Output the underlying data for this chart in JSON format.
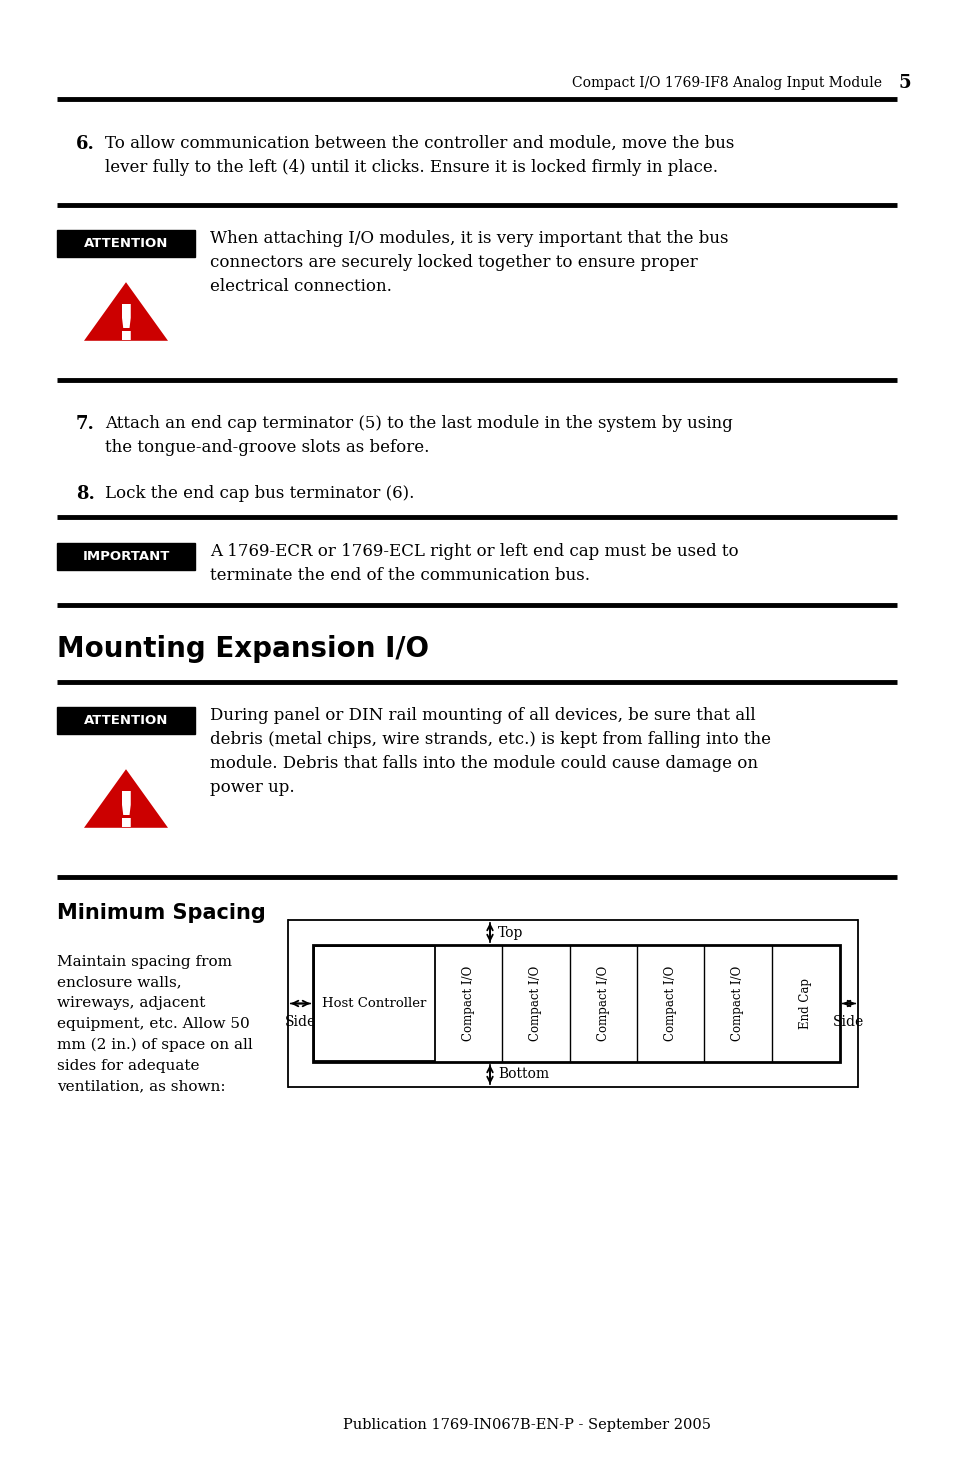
{
  "bg_color": "#ffffff",
  "header_text": "Compact I/O 1769-IF8 Analog Input Module",
  "header_page": "5",
  "section1_heading": "Mounting Expansion I/O",
  "section2_heading": "Minimum Spacing",
  "step6_num": "6.",
  "step6_text": "To allow communication between the controller and module, move the bus\nlever fully to the left (4) until it clicks. Ensure it is locked firmly in place.",
  "step7_num": "7.",
  "step7_text": "Attach an end cap terminator (5) to the last module in the system by using\nthe tongue-and-groove slots as before.",
  "step8_num": "8.",
  "step8_text": "Lock the end cap bus terminator (6).",
  "attention1_text": "When attaching I/O modules, it is very important that the bus\nconnectors are securely locked together to ensure proper\nelectrical connection.",
  "attention2_text": "During panel or DIN rail mounting of all devices, be sure that all\ndebris (metal chips, wire strands, etc.) is kept from falling into the\nmodule. Debris that falls into the module could cause damage on\npower up.",
  "important_text": "A 1769-ECR or 1769-ECL right or left end cap must be used to\nterminate the end of the communication bus.",
  "spacing_text": "Maintain spacing from\nenclosure walls,\nwireways, adjacent\nequipment, etc. Allow 50\nmm (2 in.) of space on all\nsides for adequate\nventilation, as shown:",
  "footer_text": "Publication 1769-IN067B-EN-P - September 2005",
  "diagram_labels": [
    "Compact I/O",
    "Compact I/O",
    "Compact I/O",
    "Compact I/O",
    "Compact I/O",
    "End Cap"
  ],
  "diagram_host": "Host Controller",
  "diagram_top": "Top",
  "diagram_bottom": "Bottom",
  "diagram_side": "Side",
  "label_attention": "ATTENTION",
  "label_important": "IMPORTANT",
  "attention_color": "#000000",
  "triangle_color": "#cc0000"
}
